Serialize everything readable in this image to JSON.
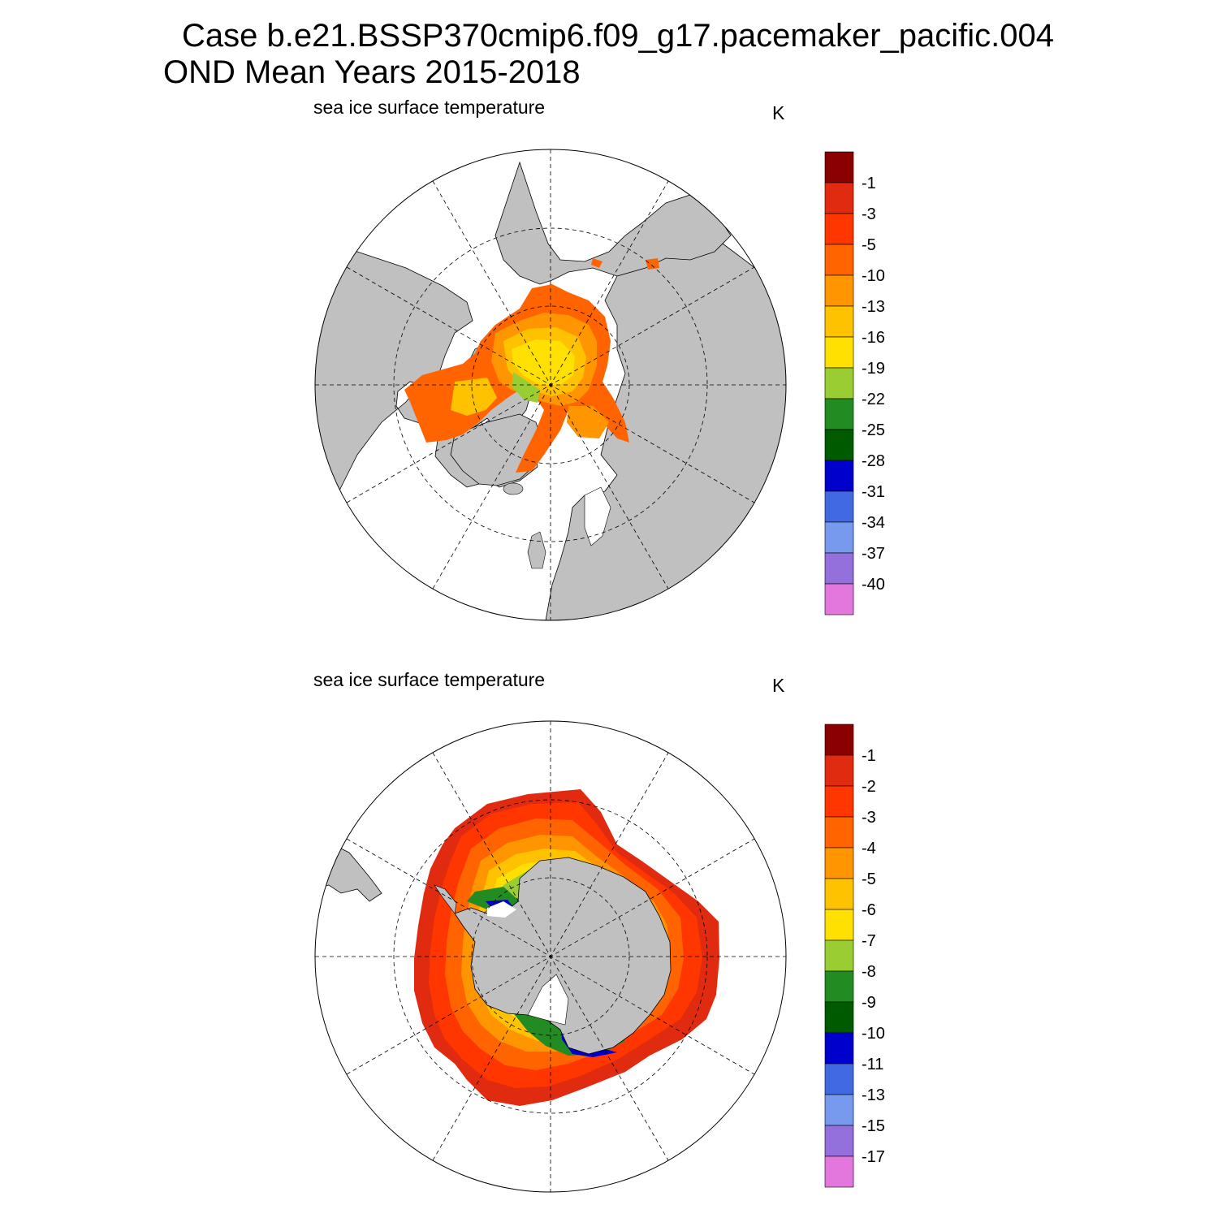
{
  "title": {
    "line1": "Case b.e21.BSSP370cmip6.f09_g17.pacemaker_pacific.004",
    "line2": "OND Mean   Years 2015-2018"
  },
  "panels": [
    {
      "id": "north",
      "hemisphere": "north",
      "title": "sea ice surface temperature",
      "units": "K",
      "colorbar": {
        "colors": [
          "#e377dd",
          "#9370db",
          "#7799ee",
          "#4169e1",
          "#0000cd",
          "#005a00",
          "#228b22",
          "#9acd32",
          "#ffe000",
          "#ffc200",
          "#ff9500",
          "#ff6400",
          "#ff3600",
          "#e02b10",
          "#8b0000"
        ],
        "labels": [
          "-40",
          "-37",
          "-34",
          "-31",
          "-28",
          "-25",
          "-22",
          "-19",
          "-16",
          "-13",
          "-10",
          "-5",
          "-3",
          "-1"
        ]
      }
    },
    {
      "id": "south",
      "hemisphere": "south",
      "title": "sea ice surface temperature",
      "units": "K",
      "colorbar": {
        "colors": [
          "#e377dd",
          "#9370db",
          "#7799ee",
          "#4169e1",
          "#0000cd",
          "#005a00",
          "#228b22",
          "#9acd32",
          "#ffe000",
          "#ffc200",
          "#ff9500",
          "#ff6400",
          "#ff3600",
          "#e02b10",
          "#8b0000"
        ],
        "labels": [
          "-17",
          "-15",
          "-13",
          "-11",
          "-10",
          "-9",
          "-8",
          "-7",
          "-6",
          "-5",
          "-4",
          "-3",
          "-2",
          "-1"
        ]
      }
    }
  ]
}
